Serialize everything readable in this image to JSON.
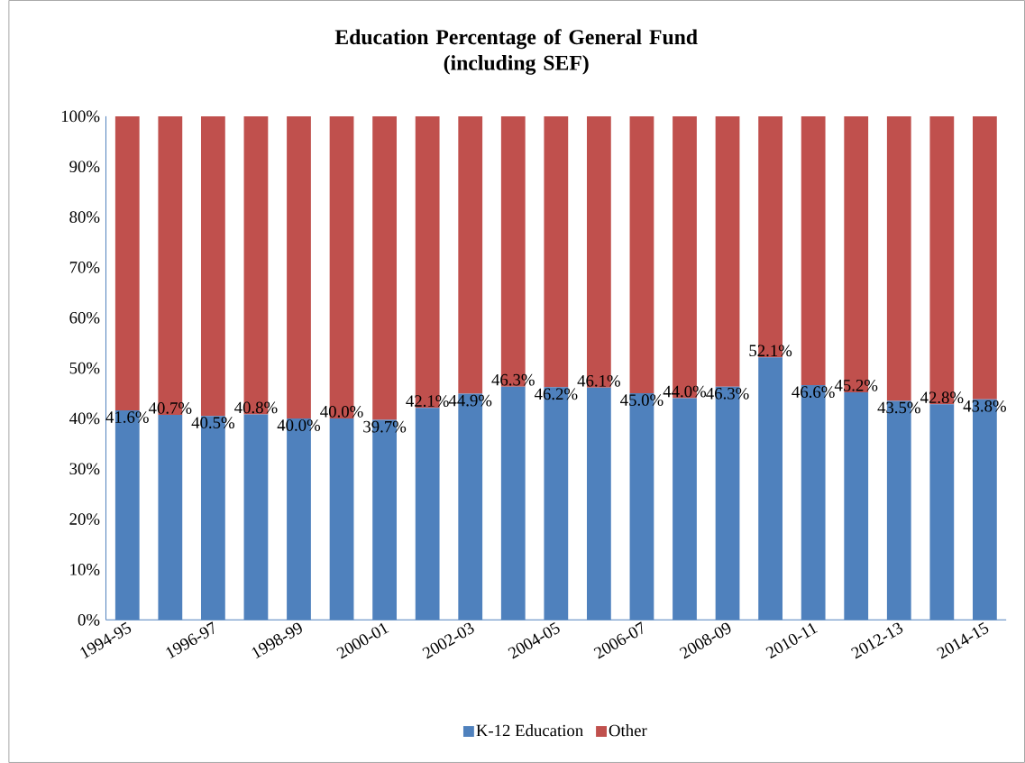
{
  "chart_data": {
    "type": "bar",
    "title": "Education Percentage of General Fund\n(including SEF)",
    "stacked": true,
    "categories": [
      "1994-95",
      null,
      "1996-97",
      null,
      "1998-99",
      null,
      "2000-01",
      null,
      "2002-03",
      null,
      "2004-05",
      null,
      "2006-07",
      null,
      "2008-09",
      null,
      "2010-11",
      null,
      "2012-13",
      null,
      "2014-15"
    ],
    "series": [
      {
        "name": "K-12 Education",
        "color": "#4f81bd",
        "values": [
          41.6,
          40.7,
          40.5,
          40.8,
          40.0,
          40.0,
          39.7,
          42.1,
          44.9,
          46.3,
          46.2,
          46.1,
          45.0,
          44.0,
          46.3,
          52.1,
          46.6,
          45.2,
          43.5,
          42.8,
          43.8
        ],
        "value_labels": [
          "41.6%",
          "40.7%",
          "40.5%",
          "40.8%",
          "40.0%",
          "40.0%",
          "39.7%",
          "42.1%",
          "44.9%",
          "46.3%",
          "46.2%",
          "46.1%",
          "45.0%",
          "44.0%",
          "46.3%",
          "52.1%",
          "46.6%",
          "45.2%",
          "43.5%",
          "42.8%",
          "43.8%"
        ]
      },
      {
        "name": "Other",
        "color": "#c0504d",
        "values": [
          58.4,
          59.3,
          59.5,
          59.2,
          60.0,
          60.0,
          60.3,
          57.9,
          55.1,
          53.7,
          53.8,
          53.9,
          55.0,
          56.0,
          53.7,
          47.9,
          53.4,
          54.8,
          56.5,
          57.2,
          56.2
        ]
      }
    ],
    "ylim": [
      0,
      100
    ],
    "yticks": [
      {
        "value": 0,
        "label": "0%"
      },
      {
        "value": 10,
        "label": "10%"
      },
      {
        "value": 20,
        "label": "20%"
      },
      {
        "value": 30,
        "label": "30%"
      },
      {
        "value": 40,
        "label": "40%"
      },
      {
        "value": 50,
        "label": "50%"
      },
      {
        "value": 60,
        "label": "60%"
      },
      {
        "value": 70,
        "label": "70%"
      },
      {
        "value": 80,
        "label": "80%"
      },
      {
        "value": 90,
        "label": "90%"
      },
      {
        "value": 100,
        "label": "100%"
      }
    ],
    "grid": false,
    "legend": "bottom"
  }
}
